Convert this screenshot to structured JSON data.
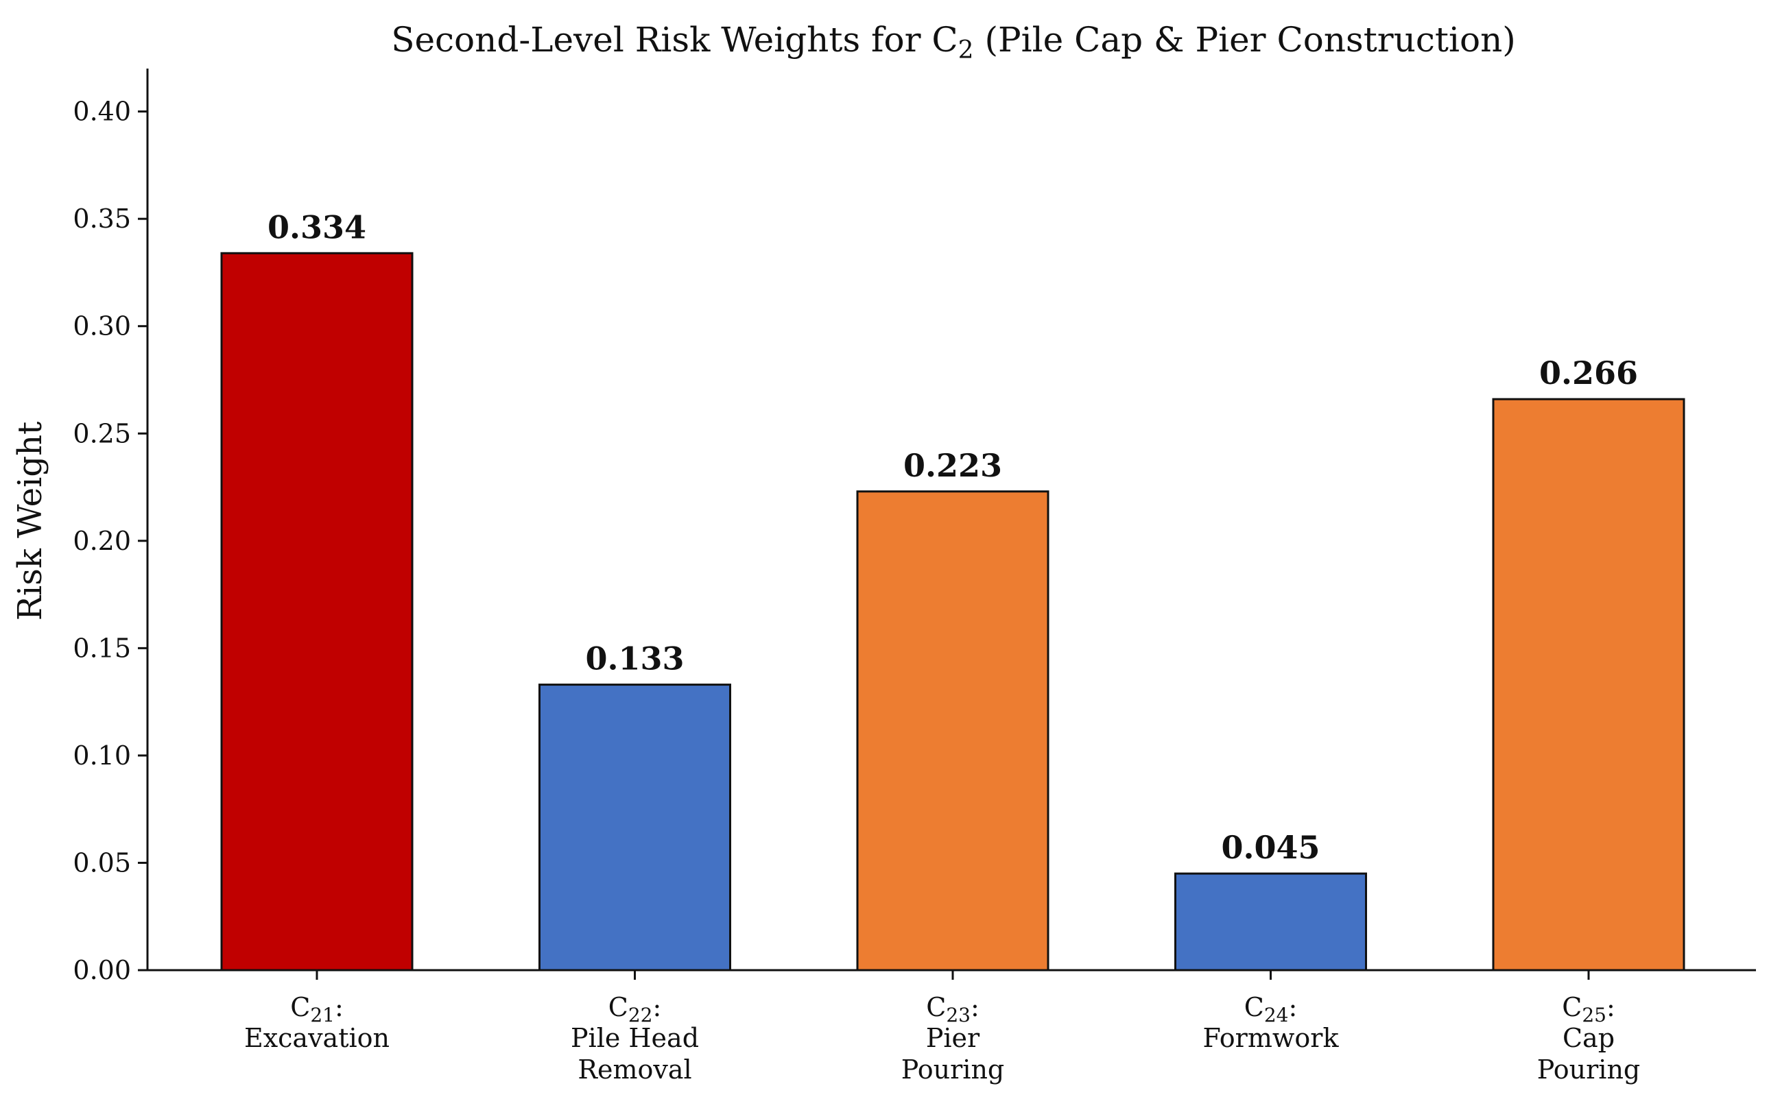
{
  "chart_data": {
    "type": "bar",
    "title": "Second-Level Risk Weights for C₂ (Pile Cap & Pier Construction)",
    "title_parts": {
      "before": "Second-Level Risk Weights for C",
      "sub": "2",
      "after": " (Pile Cap & Pier Construction)"
    },
    "xlabel": "",
    "ylabel": "Risk Weight",
    "ylim": [
      0,
      0.42
    ],
    "yticks": [
      0.0,
      0.05,
      0.1,
      0.15,
      0.2,
      0.25,
      0.3,
      0.35,
      0.4
    ],
    "ytick_labels": [
      "0.00",
      "0.05",
      "0.10",
      "0.15",
      "0.20",
      "0.25",
      "0.30",
      "0.35",
      "0.40"
    ],
    "grid": false,
    "categories": [
      {
        "code": "C",
        "sub": "21",
        "lines": [
          "Excavation"
        ]
      },
      {
        "code": "C",
        "sub": "22",
        "lines": [
          "Pile Head",
          "Removal"
        ]
      },
      {
        "code": "C",
        "sub": "23",
        "lines": [
          "Pier",
          "Pouring"
        ]
      },
      {
        "code": "C",
        "sub": "24",
        "lines": [
          "Formwork"
        ]
      },
      {
        "code": "C",
        "sub": "25",
        "lines": [
          "Cap",
          "Pouring"
        ]
      }
    ],
    "values": [
      0.334,
      0.133,
      0.223,
      0.045,
      0.266
    ],
    "value_labels": [
      "0.334",
      "0.133",
      "0.223",
      "0.045",
      "0.266"
    ],
    "colors": [
      "#c00000",
      "#4472c4",
      "#ed7d31",
      "#4472c4",
      "#ed7d31"
    ]
  }
}
